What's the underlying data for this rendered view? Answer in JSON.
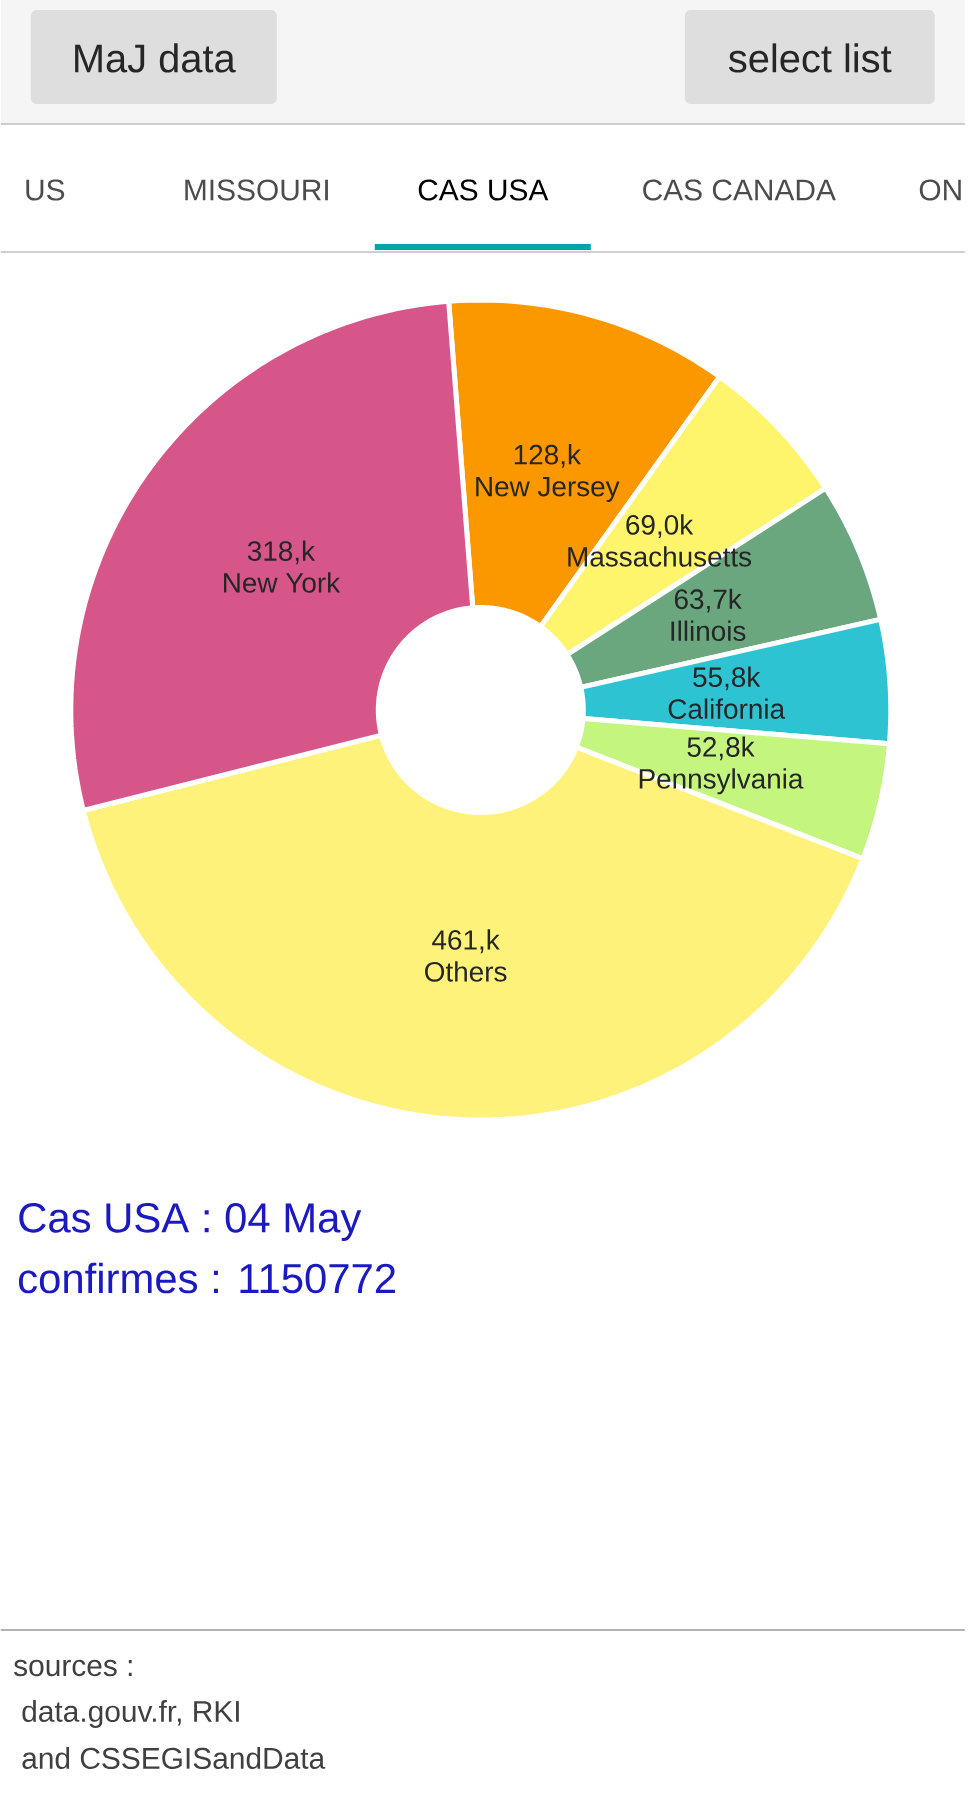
{
  "chart_data": {
    "type": "donut",
    "title": "Cas USA : 04 May",
    "subtitle": "confirmes : 1150772",
    "categories": [
      "New Jersey",
      "Massachusetts",
      "Illinois",
      "California",
      "Pennsylvania",
      "Others",
      "New York"
    ],
    "values": [
      128,
      69.0,
      63.7,
      55.8,
      52.8,
      461,
      318
    ],
    "value_labels": [
      "128,k",
      "69,0k",
      "63,7k",
      "55,8k",
      "52,8k",
      "461,k",
      "318,k"
    ],
    "colors": [
      "#fb9800",
      "#fff56d",
      "#6aa77f",
      "#2ec3d3",
      "#c4f67f",
      "#fff27a",
      "#d6568a"
    ],
    "annotations": [
      "MaJ data",
      "select list",
      "US",
      "MISSOURI",
      "CAS USA",
      "CAS CANADA",
      "ON",
      "sources :",
      "data.gouv.fr, RKI",
      "and CSSEGISandData"
    ]
  }
}
